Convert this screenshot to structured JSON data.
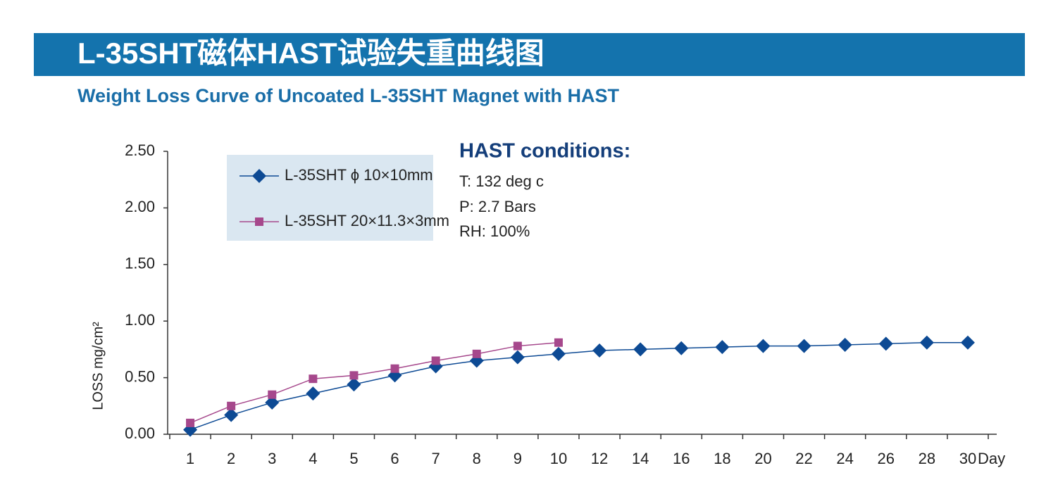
{
  "chart_data": {
    "type": "line",
    "title": "L-35SHT磁体HAST试验失重曲线图",
    "subtitle": "Weight Loss Curve of Uncoated L-35SHT Magnet with HAST",
    "y_label": "LOSS mg/cm²",
    "x_label": "Day",
    "annotation": {
      "heading": "HAST conditions:",
      "lines": [
        "T: 132 deg c",
        "P: 2.7 Bars",
        "RH: 100%"
      ]
    },
    "categories": [
      "1",
      "2",
      "3",
      "4",
      "5",
      "6",
      "7",
      "8",
      "9",
      "10",
      "12",
      "14",
      "16",
      "18",
      "20",
      "22",
      "24",
      "26",
      "28",
      "30"
    ],
    "series": [
      {
        "name": "L-35SHT ϕ 10×10mm",
        "color": "#0d4a94",
        "marker": "diamond",
        "values": [
          0.04,
          0.17,
          0.28,
          0.36,
          0.44,
          0.52,
          0.6,
          0.65,
          0.68,
          0.71,
          0.74,
          0.75,
          0.76,
          0.77,
          0.78,
          0.78,
          0.79,
          0.8,
          0.81,
          0.81
        ]
      },
      {
        "name": "L-35SHT 20×11.3×3mm",
        "color": "#a6488c",
        "marker": "square",
        "values": [
          0.1,
          0.25,
          0.35,
          0.49,
          0.52,
          0.58,
          0.65,
          0.71,
          0.78,
          0.81,
          null,
          null,
          null,
          null,
          null,
          null,
          null,
          null,
          null,
          null
        ]
      }
    ],
    "ylim": [
      0,
      2.5
    ],
    "yticks": [
      {
        "value": 0,
        "label": "0.00"
      },
      {
        "value": 0.5,
        "label": "0.50"
      },
      {
        "value": 1,
        "label": "1.00"
      },
      {
        "value": 1.5,
        "label": "1.50"
      },
      {
        "value": 2,
        "label": "2.00"
      },
      {
        "value": 2.5,
        "label": "2.50"
      }
    ],
    "grid": false,
    "legend": "upper left"
  }
}
